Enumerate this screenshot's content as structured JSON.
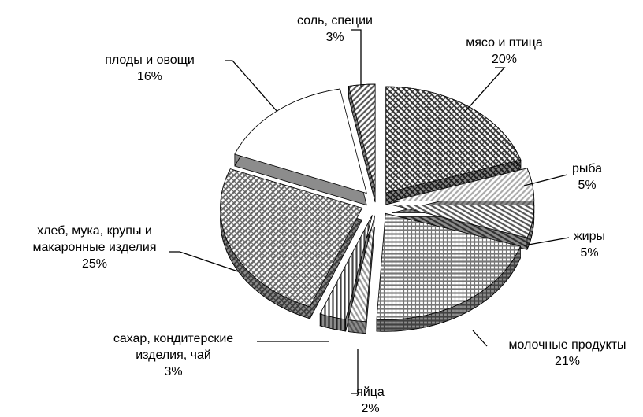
{
  "chart_data": {
    "type": "pie",
    "categories": [
      "мясо и птица",
      "рыба",
      "жиры",
      "молочные продукты",
      "яйца",
      "сахар,  кондитерские изделия, чай",
      "хлеб, мука, крупы и макаронные изделия",
      "плоды и овощи",
      "соль, специи"
    ],
    "values": [
      20,
      5,
      5,
      21,
      2,
      3,
      25,
      16,
      3
    ],
    "value_labels": [
      "20%",
      "5%",
      "5%",
      "21%",
      "2%",
      "3%",
      "25%",
      "16%",
      "3%"
    ],
    "colors": [
      "#333333",
      "#aaaaaa",
      "#555555",
      "#777777",
      "#999999",
      "#444444",
      "#666666",
      "#ffffff",
      "#555555"
    ]
  }
}
